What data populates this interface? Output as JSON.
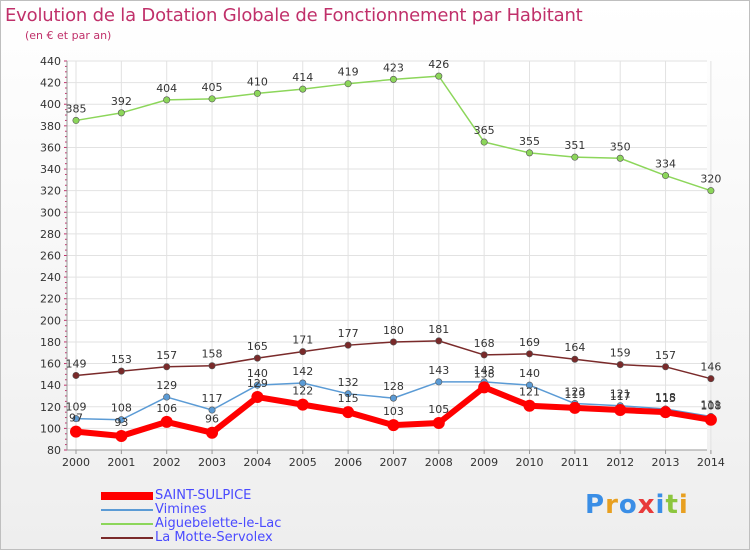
{
  "title": "Evolution de la Dotation Globale de Fonctionnement par Habitant",
  "subtitle": "(en € et par an)",
  "logo": {
    "text": "Proxiti",
    "letters": [
      "P",
      "r",
      "o",
      "x",
      "i",
      "t",
      "i"
    ],
    "colors": [
      "#3a8ee6",
      "#e8a020",
      "#3a8ee6",
      "#e83a3a",
      "#3a8ee6",
      "#8cc63e",
      "#e8a020"
    ]
  },
  "legend": [
    {
      "name": "SAINT-SULPICE",
      "color": "#ff0000",
      "width": 8
    },
    {
      "name": "Vimines",
      "color": "#5b9bd5",
      "width": 2
    },
    {
      "name": "Aiguebelette-le-Lac",
      "color": "#8cd65a",
      "width": 2
    },
    {
      "name": "La Motte-Servolex",
      "color": "#7a2a2a",
      "width": 2
    }
  ],
  "chart_data": {
    "type": "line",
    "title": "Evolution de la Dotation Globale de Fonctionnement par Habitant",
    "subtitle": "(en € et par an)",
    "xlabel": "",
    "ylabel": "",
    "ylim": [
      80,
      440
    ],
    "yticks": [
      80,
      100,
      120,
      140,
      160,
      180,
      200,
      220,
      240,
      260,
      280,
      300,
      320,
      340,
      360,
      380,
      400,
      420,
      440
    ],
    "categories": [
      "2000",
      "2001",
      "2002",
      "2003",
      "2004",
      "2005",
      "2006",
      "2007",
      "2008",
      "2009",
      "2010",
      "2011",
      "2012",
      "2013",
      "2014"
    ],
    "series": [
      {
        "name": "Aiguebelette-le-Lac",
        "color": "#8cd65a",
        "values": [
          385,
          392,
          404,
          405,
          410,
          414,
          419,
          423,
          426,
          365,
          355,
          351,
          350,
          334,
          320
        ]
      },
      {
        "name": "La Motte-Servolex",
        "color": "#7a2a2a",
        "values": [
          149,
          153,
          157,
          158,
          165,
          171,
          177,
          180,
          181,
          168,
          169,
          164,
          159,
          157,
          146
        ]
      },
      {
        "name": "Vimines",
        "color": "#5b9bd5",
        "values": [
          109,
          108,
          129,
          117,
          140,
          142,
          132,
          128,
          143,
          143,
          140,
          123,
          121,
          118,
          111
        ]
      },
      {
        "name": "SAINT-SULPICE",
        "color": "#ff0000",
        "values": [
          97,
          93,
          106,
          96,
          129,
          122,
          115,
          103,
          105,
          138,
          121,
          119,
          117,
          115,
          108
        ]
      }
    ]
  }
}
